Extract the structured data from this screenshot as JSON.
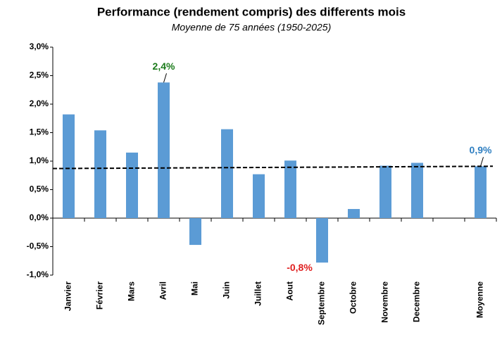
{
  "chart_data": {
    "type": "bar",
    "title": "Performance (rendement compris) des differents mois",
    "subtitle": "Moyenne de 75 années (1950-2025)",
    "categories": [
      "Janvier",
      "Février",
      "Mars",
      "Avril",
      "Mai",
      "Juin",
      "Juillet",
      "Aout",
      "Septembre",
      "Octobre",
      "Novembre",
      "Decembre",
      null,
      "Moyenne"
    ],
    "values": [
      1.82,
      1.54,
      1.15,
      2.38,
      -0.47,
      1.56,
      0.77,
      1.01,
      -0.78,
      0.16,
      0.92,
      0.97,
      null,
      0.91
    ],
    "value_labels": [
      null,
      null,
      null,
      "2,4%",
      null,
      null,
      null,
      null,
      "-0,8%",
      null,
      null,
      null,
      null,
      "0,9%"
    ],
    "value_label_colors": [
      null,
      null,
      null,
      "#1a7a1a",
      null,
      null,
      null,
      null,
      "#e02020",
      null,
      null,
      null,
      null,
      "#2f7fc1"
    ],
    "color": "#5b9bd5",
    "average_line": {
      "values": [
        0.87,
        0.91
      ],
      "color": "#000000",
      "style": "dashed"
    },
    "ylim": [
      -1.0,
      3.0
    ],
    "yticks": [
      {
        "value": -1.0,
        "label": "-1,0%"
      },
      {
        "value": -0.5,
        "label": "-0,5%"
      },
      {
        "value": 0.0,
        "label": "0,0%"
      },
      {
        "value": 0.5,
        "label": "0,5%"
      },
      {
        "value": 1.0,
        "label": "1,0%"
      },
      {
        "value": 1.5,
        "label": "1,5%"
      },
      {
        "value": 2.0,
        "label": "2,0%"
      },
      {
        "value": 2.5,
        "label": "2,5%"
      },
      {
        "value": 3.0,
        "label": "3,0%"
      }
    ],
    "grid": false
  }
}
